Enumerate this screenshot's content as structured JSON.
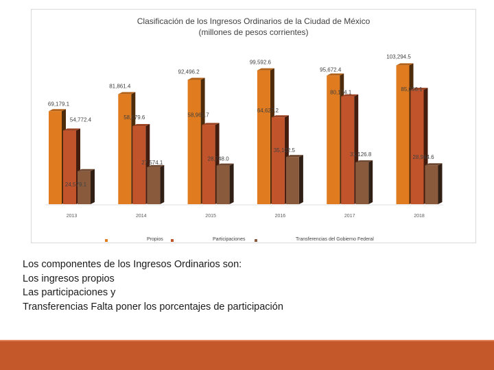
{
  "chart_data": {
    "type": "bar",
    "title": "Clasificación de los Ingresos Ordinarios de la Ciudad de México",
    "subtitle": "(millones de pesos corrientes)",
    "categories": [
      "2013",
      "2014",
      "2015",
      "2016",
      "2017",
      "2018"
    ],
    "series": [
      {
        "name": "Propios",
        "color": "#e07b1f",
        "values": [
          69179.1,
          81861.4,
          92496.2,
          99592.6,
          95672.4,
          103294.5
        ],
        "labels": [
          "69,179.1",
          "81,861.4",
          "92,496.2",
          "99,592.6",
          "95,672.4",
          "103,294.5"
        ]
      },
      {
        "name": "Participaciones",
        "color": "#c2542c",
        "values": [
          54772.4,
          58079.6,
          58961.7,
          64627.2,
          80174.1,
          85056.1
        ],
        "labels": [
          "54,772.4",
          "58,079.6",
          "58,961.7",
          "64,627.2",
          "80,174.1",
          "85,056.1"
        ]
      },
      {
        "name": "Transferencias del Gobierno Federal",
        "color": "#8a5a3c",
        "values": [
          24579.1,
          27574.1,
          28748.0,
          35102.5,
          31126.8,
          28944.6
        ],
        "labels": [
          "24,579.1",
          "27,574.1",
          "28,748.0",
          "35,102.5",
          "31,126.8",
          "28,944.6"
        ]
      }
    ],
    "ylim": [
      0,
      105000
    ],
    "xlabel": "",
    "ylabel": "",
    "grid": false,
    "legend": "bottom"
  },
  "body": {
    "lines": [
      "Los componentes de los Ingresos Ordinarios son:",
      "Los ingresos propios",
      "Las participaciones y",
      "Transferencias   Falta poner los porcentajes de participación"
    ]
  }
}
